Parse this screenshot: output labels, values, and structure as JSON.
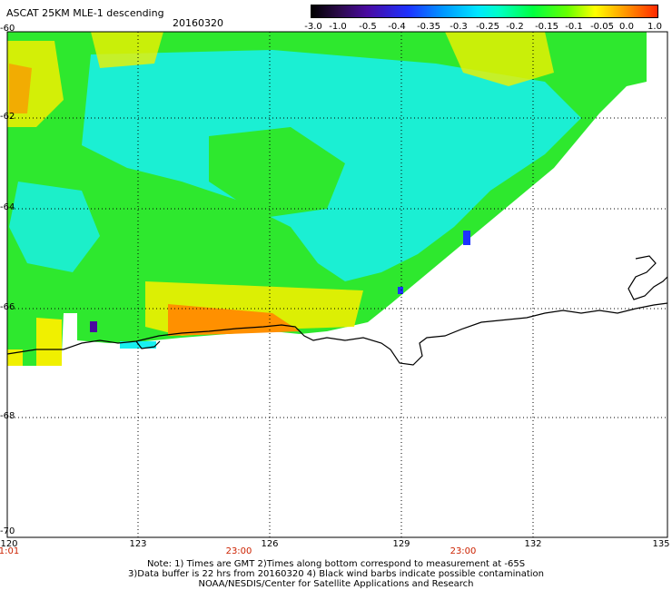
{
  "title": "ASCAT 25KM MLE-1 descending",
  "date": "20160320",
  "colorbar": {
    "labels": [
      "-3.0",
      "-1.0",
      "-0.5",
      "-0.4",
      "-0.35",
      "-0.3",
      "-0.25",
      "-0.2",
      "-0.15",
      "-0.1",
      "-0.05",
      "0.0",
      "1.0"
    ]
  },
  "lat_labels": [
    "-60",
    "-62",
    "-64",
    "-66",
    "-68",
    "-70"
  ],
  "lon_labels": [
    "120",
    "123",
    "126",
    "129",
    "132",
    "135"
  ],
  "time_labels": [
    "1:01",
    "23:00",
    "23:00"
  ],
  "footer": {
    "line1": "Note: 1) Times are GMT 2)Times along bottom correspond to measurement at -65S",
    "line2": "3)Data buffer is 22 hrs from 20160320 4) Black wind barbs indicate possible contamination",
    "line3": "NOAA/NESDIS/Center for Satellite Applications and Research"
  },
  "colors": {
    "swath_green": "#2ee82e",
    "swath_cyan": "#18f0f0",
    "swath_yellow": "#f0f000",
    "swath_orange": "#ff9000",
    "coastline": "#000000"
  }
}
